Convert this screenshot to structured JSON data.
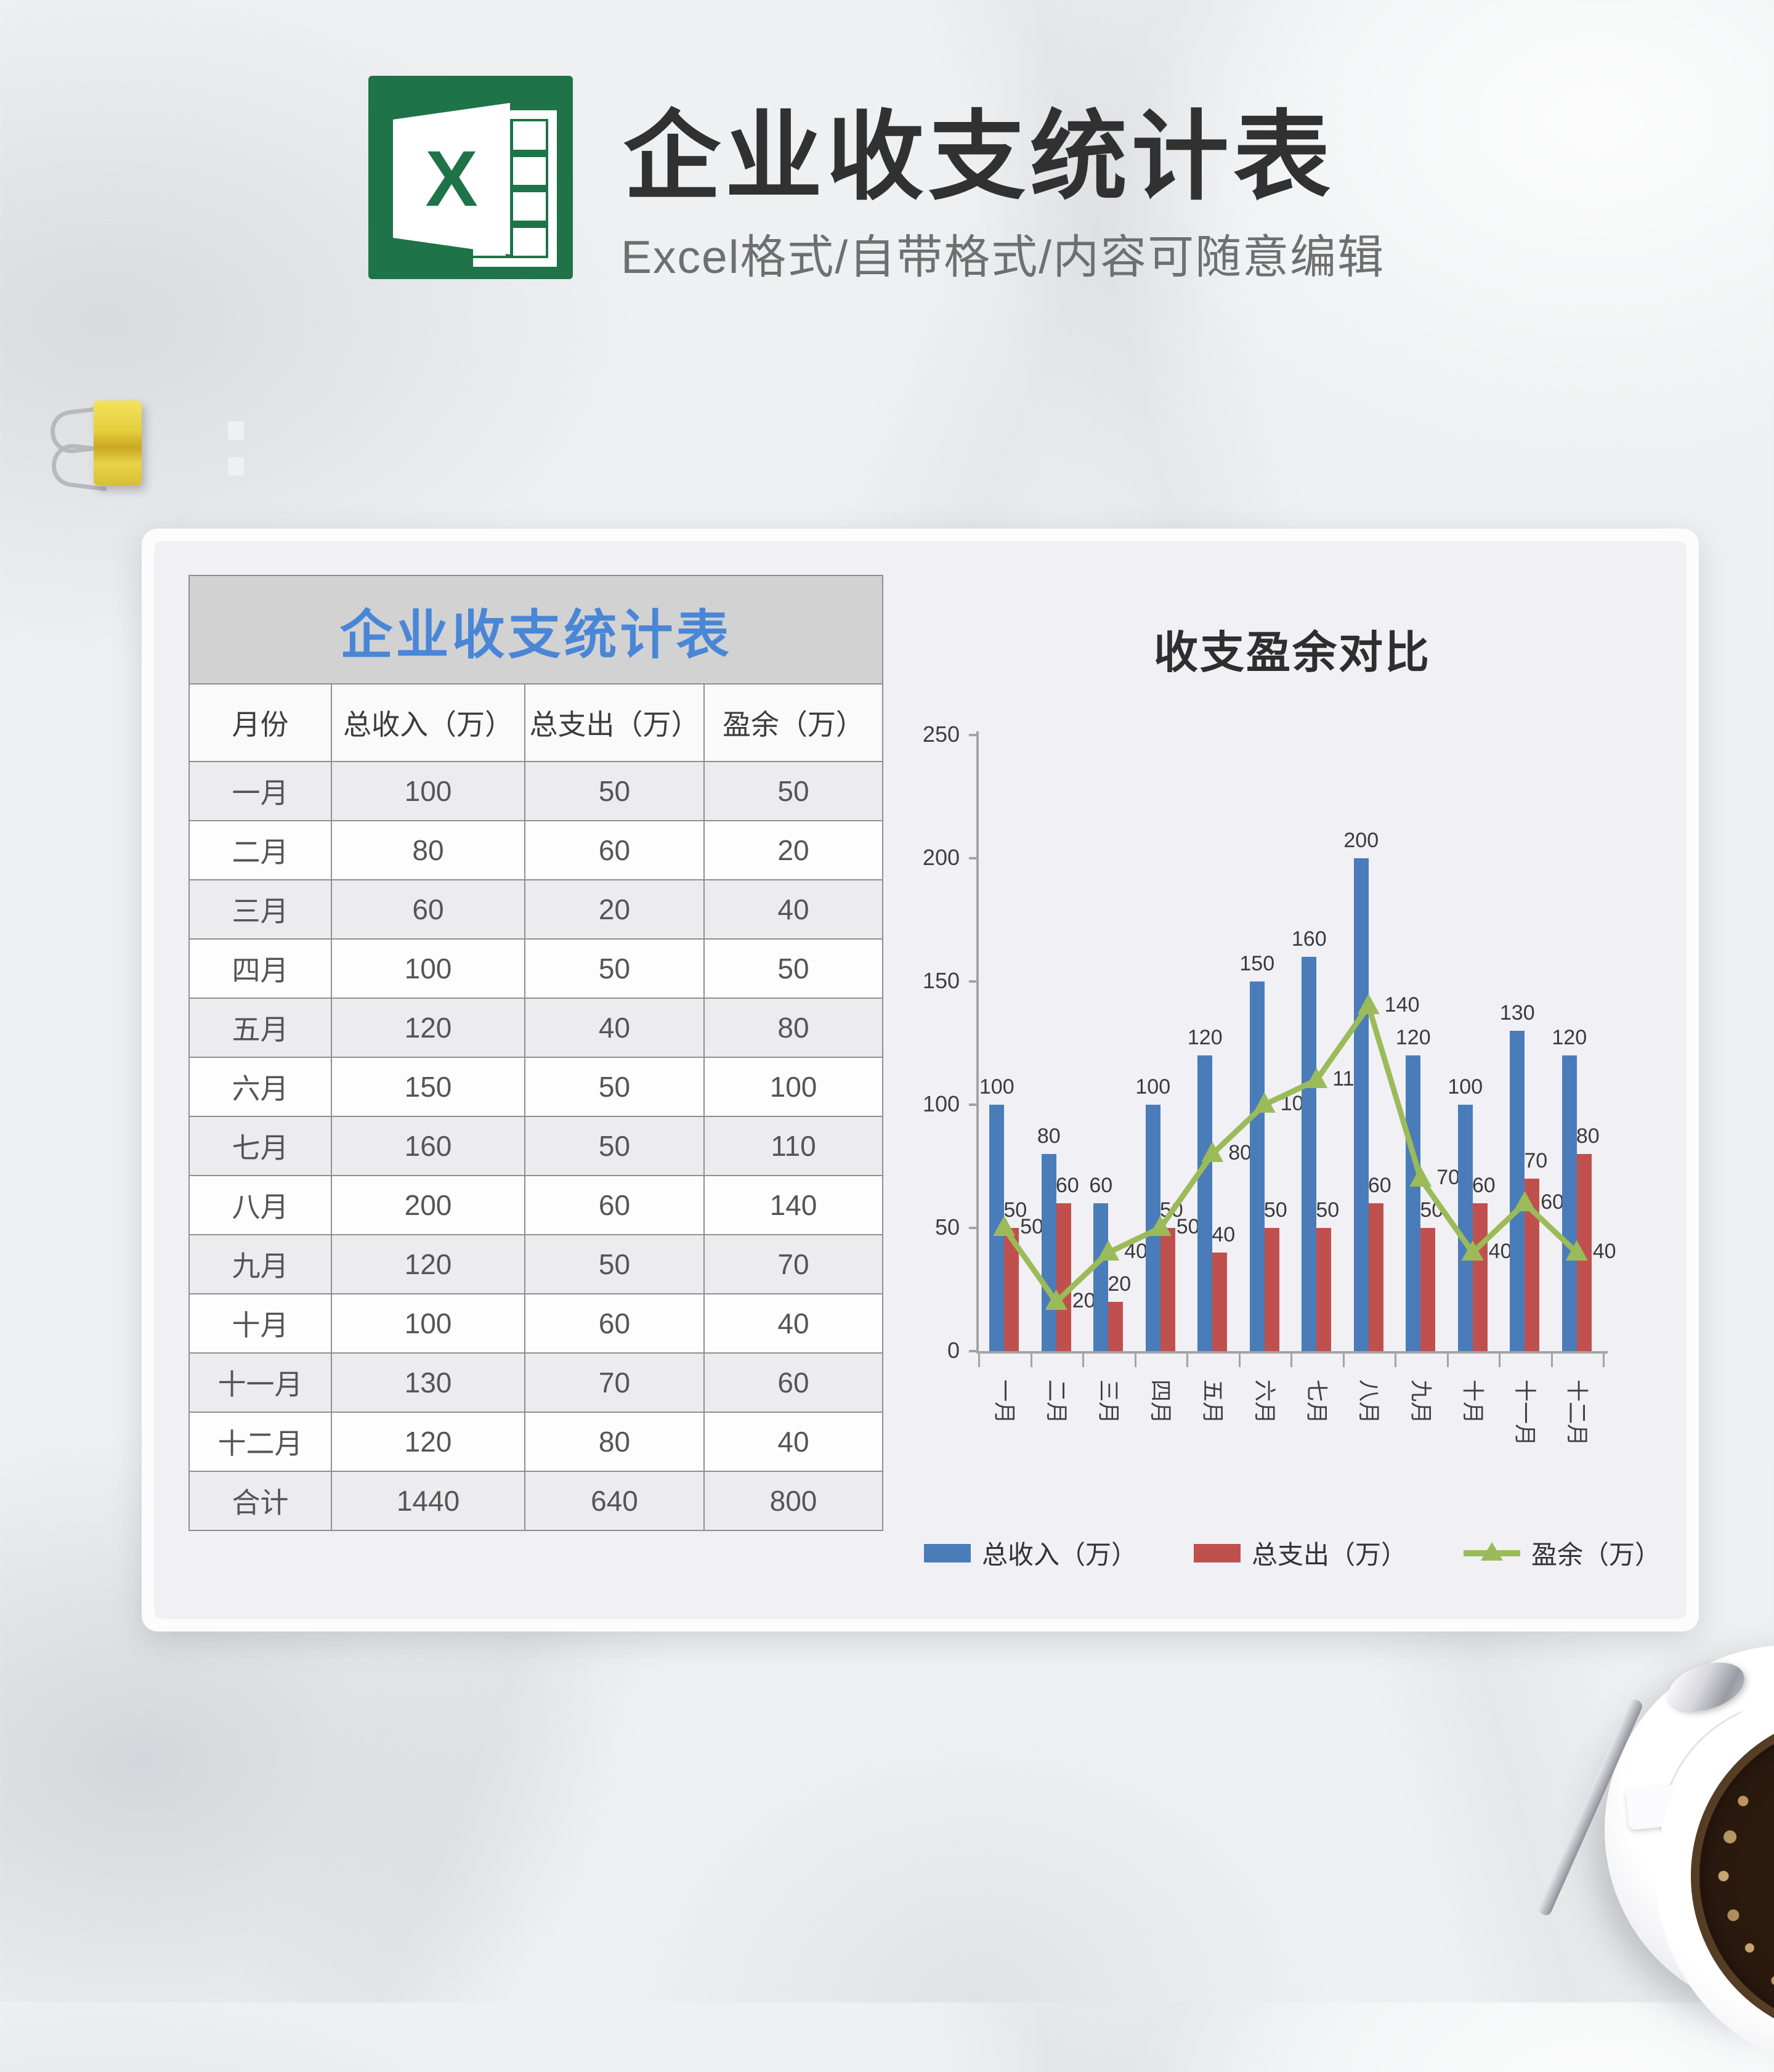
{
  "header": {
    "title": "企业收支统计表",
    "subtitle": "Excel格式/自带格式/内容可随意编辑",
    "logo_letter": "X"
  },
  "table": {
    "title": "企业收支统计表",
    "columns": [
      "月份",
      "总收入（万）",
      "总支出（万）",
      "盈余（万）"
    ],
    "rows": [
      [
        "一月",
        "100",
        "50",
        "50"
      ],
      [
        "二月",
        "80",
        "60",
        "20"
      ],
      [
        "三月",
        "60",
        "20",
        "40"
      ],
      [
        "四月",
        "100",
        "50",
        "50"
      ],
      [
        "五月",
        "120",
        "40",
        "80"
      ],
      [
        "六月",
        "150",
        "50",
        "100"
      ],
      [
        "七月",
        "160",
        "50",
        "110"
      ],
      [
        "八月",
        "200",
        "60",
        "140"
      ],
      [
        "九月",
        "120",
        "50",
        "70"
      ],
      [
        "十月",
        "100",
        "60",
        "40"
      ],
      [
        "十一月",
        "130",
        "70",
        "60"
      ],
      [
        "十二月",
        "120",
        "80",
        "40"
      ]
    ],
    "total_row": [
      "合计",
      "1440",
      "640",
      "800"
    ]
  },
  "chart_data": {
    "type": "bar",
    "title": "收支盈余对比",
    "categories": [
      "一月",
      "二月",
      "三月",
      "四月",
      "五月",
      "六月",
      "七月",
      "八月",
      "九月",
      "十月",
      "十一月",
      "十二月"
    ],
    "series": [
      {
        "name": "总收入（万）",
        "type": "bar",
        "color": "#4a7cba",
        "values": [
          100,
          80,
          60,
          100,
          120,
          150,
          160,
          200,
          120,
          100,
          130,
          120
        ]
      },
      {
        "name": "总支出（万）",
        "type": "bar",
        "color": "#c0504d",
        "values": [
          50,
          60,
          20,
          50,
          40,
          50,
          50,
          60,
          50,
          60,
          70,
          80
        ]
      },
      {
        "name": "盈余（万）",
        "type": "line",
        "color": "#9bbb59",
        "values": [
          50,
          20,
          40,
          50,
          80,
          100,
          110,
          140,
          70,
          40,
          60,
          40
        ]
      }
    ],
    "ylim": [
      0,
      250
    ],
    "yticks": [
      0,
      50,
      100,
      150,
      200,
      250
    ],
    "xlabel": "",
    "ylabel": "",
    "grid": false,
    "legend_position": "bottom",
    "axis_color": "#a3a3a3"
  }
}
